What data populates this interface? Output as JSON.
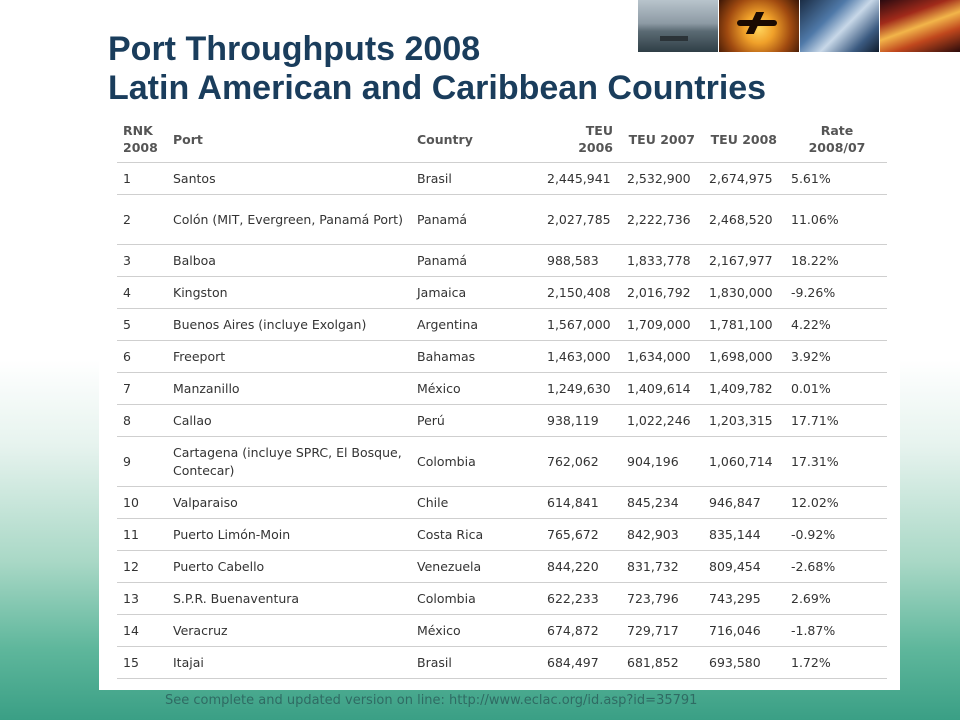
{
  "title": {
    "line1": "Port Throughputs 2008",
    "line2": "Latin American and Caribbean Countries"
  },
  "table": {
    "headers": {
      "rank": "RNK 2008",
      "port": "Port",
      "country": "Country",
      "teu2006": "TEU 2006",
      "teu2007": "TEU 2007",
      "teu2008": "TEU 2008",
      "rate": "Rate 2008/07"
    },
    "rows": [
      {
        "rank": "1",
        "port": "Santos",
        "country": "Brasil",
        "teu2006": "2,445,941",
        "teu2007": "2,532,900",
        "teu2008": "2,674,975",
        "rate": "5.61%"
      },
      {
        "rank": "2",
        "port": "Colón (MIT, Evergreen, Panamá Port)",
        "country": "Panamá",
        "teu2006": "2,027,785",
        "teu2007": "2,222,736",
        "teu2008": "2,468,520",
        "rate": "11.06%"
      },
      {
        "rank": "3",
        "port": "Balboa",
        "country": "Panamá",
        "teu2006": "988,583",
        "teu2007": "1,833,778",
        "teu2008": "2,167,977",
        "rate": "18.22%"
      },
      {
        "rank": "4",
        "port": "Kingston",
        "country": "Jamaica",
        "teu2006": "2,150,408",
        "teu2007": "2,016,792",
        "teu2008": "1,830,000",
        "rate": "-9.26%"
      },
      {
        "rank": "5",
        "port": "Buenos Aires (incluye Exolgan)",
        "country": "Argentina",
        "teu2006": "1,567,000",
        "teu2007": "1,709,000",
        "teu2008": "1,781,100",
        "rate": "4.22%"
      },
      {
        "rank": "6",
        "port": "Freeport",
        "country": "Bahamas",
        "teu2006": "1,463,000",
        "teu2007": "1,634,000",
        "teu2008": "1,698,000",
        "rate": "3.92%"
      },
      {
        "rank": "7",
        "port": "Manzanillo",
        "country": "México",
        "teu2006": "1,249,630",
        "teu2007": "1,409,614",
        "teu2008": "1,409,782",
        "rate": "0.01%"
      },
      {
        "rank": "8",
        "port": "Callao",
        "country": "Perú",
        "teu2006": "938,119",
        "teu2007": "1,022,246",
        "teu2008": "1,203,315",
        "rate": "17.71%"
      },
      {
        "rank": "9",
        "port": "Cartagena (incluye SPRC, El Bosque, Contecar)",
        "country": "Colombia",
        "teu2006": "762,062",
        "teu2007": "904,196",
        "teu2008": "1,060,714",
        "rate": "17.31%"
      },
      {
        "rank": "10",
        "port": "Valparaiso",
        "country": "Chile",
        "teu2006": "614,841",
        "teu2007": "845,234",
        "teu2008": "946,847",
        "rate": "12.02%"
      },
      {
        "rank": "11",
        "port": "Puerto Limón-Moin",
        "country": "Costa Rica",
        "teu2006": "765,672",
        "teu2007": "842,903",
        "teu2008": "835,144",
        "rate": "-0.92%"
      },
      {
        "rank": "12",
        "port": "Puerto Cabello",
        "country": "Venezuela",
        "teu2006": "844,220",
        "teu2007": "831,732",
        "teu2008": "809,454",
        "rate": "-2.68%"
      },
      {
        "rank": "13",
        "port": "S.P.R. Buenaventura",
        "country": "Colombia",
        "teu2006": "622,233",
        "teu2007": "723,796",
        "teu2008": "743,295",
        "rate": "2.69%"
      },
      {
        "rank": "14",
        "port": "Veracruz",
        "country": "México",
        "teu2006": "674,872",
        "teu2007": "729,717",
        "teu2008": "716,046",
        "rate": "-1.87%"
      },
      {
        "rank": "15",
        "port": "Itajai",
        "country": "Brasil",
        "teu2006": "684,497",
        "teu2007": "681,852",
        "teu2008": "693,580",
        "rate": "1.72%"
      }
    ]
  },
  "footer": "See complete and updated version on line: http://www.eclac.org/id.asp?id=35791",
  "images": [
    "harbor-ship-photo",
    "airplane-sunset-photo",
    "train-station-photo",
    "city-traffic-lights-photo"
  ]
}
